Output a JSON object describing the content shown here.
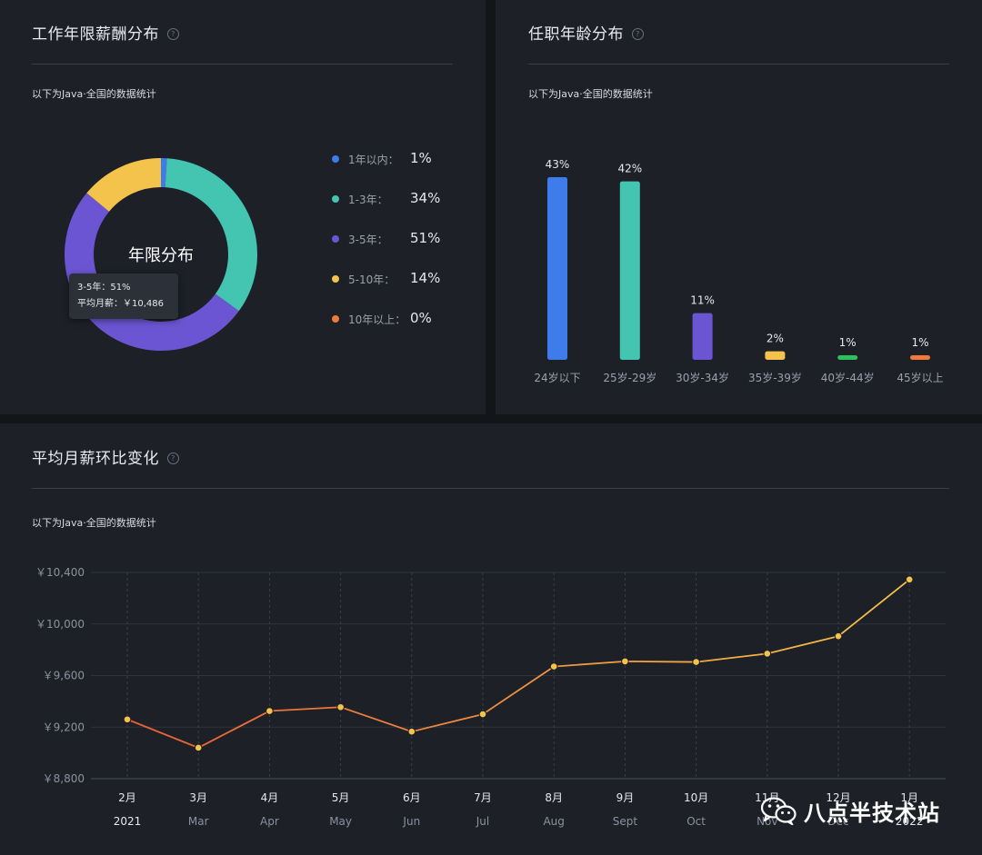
{
  "colors": {
    "blue": "#3f7ceb",
    "teal": "#43c5b2",
    "purple": "#6c55d2",
    "yellow": "#f4c34b",
    "orange": "#f07a3c",
    "green": "#2bc25e"
  },
  "help_icon_glyph": "?",
  "experience_panel": {
    "title": "工作年限薪酬分布",
    "subtitle": "以下为Java·全国的数据统计",
    "donut_center_label": "年限分布",
    "tooltip": {
      "line1": "3-5年：51%",
      "line2": "平均月薪：￥10,486"
    },
    "legend": [
      {
        "label": "1年以内：",
        "value": "1%"
      },
      {
        "label": "1-3年：",
        "value": "34%"
      },
      {
        "label": "3-5年：",
        "value": "51%"
      },
      {
        "label": "5-10年：",
        "value": "14%"
      },
      {
        "label": "10年以上：",
        "value": "0%"
      }
    ]
  },
  "age_panel": {
    "title": "任职年龄分布",
    "subtitle": "以下为Java·全国的数据统计"
  },
  "trend_panel": {
    "title": "平均月薪环比变化",
    "subtitle": "以下为Java·全国的数据统计"
  },
  "watermark": {
    "text": "八点半技术站"
  },
  "chart_data": [
    {
      "type": "pie",
      "donut": true,
      "title": "",
      "center_label": "年限分布",
      "categories": [
        "1年以内",
        "1-3年",
        "3-5年",
        "5-10年",
        "10年以上"
      ],
      "values": [
        1,
        34,
        51,
        14,
        0
      ],
      "colors": [
        "#3f7ceb",
        "#43c5b2",
        "#6c55d2",
        "#f4c34b",
        "#f07a3c"
      ],
      "legend": "right"
    },
    {
      "type": "bar",
      "title": "",
      "categories": [
        "24岁以下",
        "25岁-29岁",
        "30岁-34岁",
        "35岁-39岁",
        "40岁-44岁",
        "45岁以上"
      ],
      "values": [
        43,
        42,
        11,
        2,
        1,
        1
      ],
      "value_labels": [
        "43%",
        "42%",
        "11%",
        "2%",
        "1%",
        "1%"
      ],
      "colors": [
        "#3f7ceb",
        "#43c5b2",
        "#6c55d2",
        "#f4c34b",
        "#2bc25e",
        "#f07a3c"
      ],
      "ylim": [
        0,
        43
      ]
    },
    {
      "type": "line",
      "title": "",
      "categories": [
        "2月",
        "3月",
        "4月",
        "5月",
        "6月",
        "7月",
        "8月",
        "9月",
        "10月",
        "11月",
        "12月",
        "1月"
      ],
      "subcategories": [
        "2021",
        "Mar",
        "Apr",
        "May",
        "Jun",
        "Jul",
        "Aug",
        "Sept",
        "Oct",
        "Nov",
        "Dec",
        "2022"
      ],
      "values": [
        9260,
        9040,
        9325,
        9355,
        9165,
        9300,
        9670,
        9710,
        9705,
        9770,
        9905,
        10345
      ],
      "ylim": [
        8800,
        10400
      ],
      "yticks": [
        8800,
        9200,
        9600,
        10000,
        10400
      ],
      "ytick_labels": [
        "￥8,800",
        "￥9,200",
        "￥9,600",
        "￥10,000",
        "￥10,400"
      ],
      "grid": true,
      "line_gradient": [
        "#e85f36",
        "#f4c34b"
      ]
    }
  ]
}
